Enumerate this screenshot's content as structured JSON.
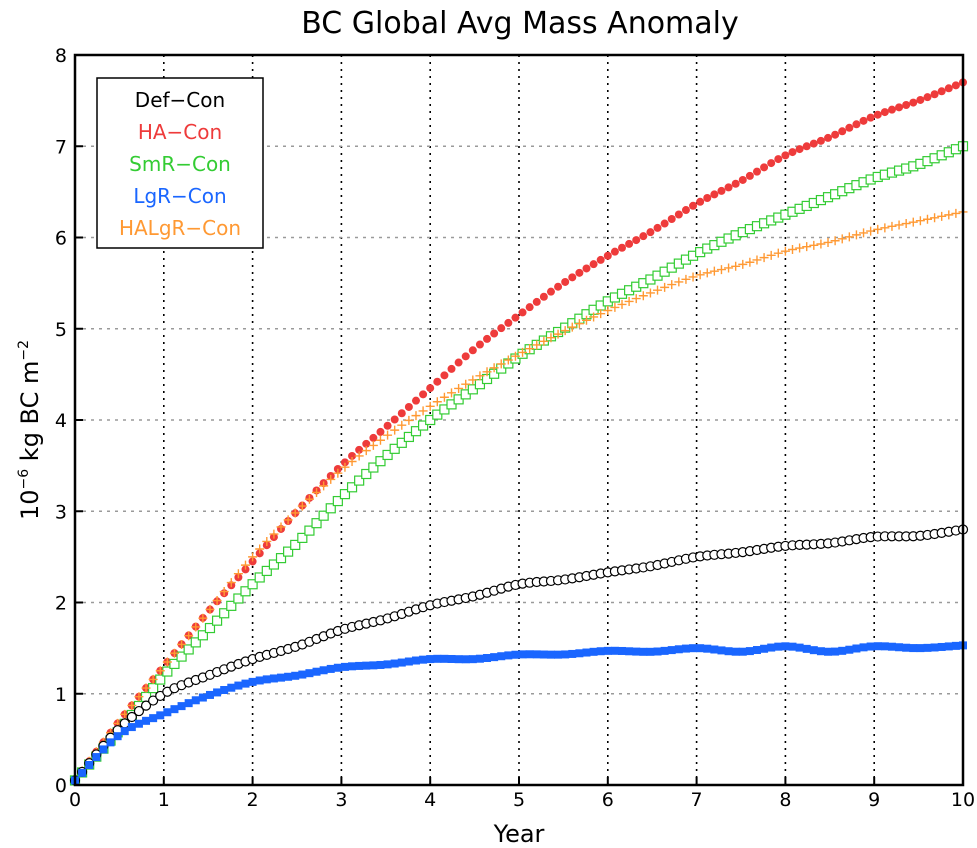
{
  "chart_data": {
    "type": "line",
    "title": "BC Global Avg Mass Anomaly",
    "xlabel": "Year",
    "ylabel_base": "10",
    "ylabel_exp": "−6",
    "ylabel_mid": " kg BC m",
    "ylabel_exp2": "−2",
    "xlim": [
      0,
      10
    ],
    "ylim": [
      0,
      8
    ],
    "x_ticks": [
      "0",
      "1",
      "2",
      "3",
      "4",
      "5",
      "6",
      "7",
      "8",
      "9",
      "10"
    ],
    "y_ticks": [
      "0",
      "1",
      "2",
      "3",
      "4",
      "5",
      "6",
      "7",
      "8"
    ],
    "grid": {
      "vertical": "dotted-black",
      "horizontal": "dotted-gray"
    },
    "legend_position": "top-left",
    "x": [
      0,
      0.5,
      1,
      1.5,
      2,
      2.5,
      3,
      3.5,
      4,
      4.5,
      5,
      5.5,
      6,
      6.5,
      7,
      7.5,
      8,
      8.5,
      9,
      9.5,
      10
    ],
    "series": [
      {
        "name": "Def−Con",
        "color": "#000000",
        "marker": "open-circle",
        "values": [
          0.05,
          0.62,
          1.0,
          1.2,
          1.38,
          1.52,
          1.7,
          1.82,
          1.97,
          2.07,
          2.2,
          2.25,
          2.33,
          2.4,
          2.5,
          2.55,
          2.62,
          2.65,
          2.72,
          2.73,
          2.8
        ]
      },
      {
        "name": "HA−Con",
        "color": "#ee3b3b",
        "marker": "filled-circle",
        "values": [
          0.05,
          0.7,
          1.3,
          1.9,
          2.45,
          3.0,
          3.5,
          3.92,
          4.35,
          4.78,
          5.15,
          5.5,
          5.8,
          6.07,
          6.37,
          6.62,
          6.9,
          7.1,
          7.33,
          7.5,
          7.7
        ]
      },
      {
        "name": "SmR−Con",
        "color": "#33cc33",
        "marker": "open-square",
        "values": [
          0.05,
          0.6,
          1.2,
          1.7,
          2.2,
          2.65,
          3.15,
          3.6,
          4.0,
          4.35,
          4.7,
          5.0,
          5.3,
          5.55,
          5.82,
          6.05,
          6.25,
          6.45,
          6.65,
          6.8,
          7.0
        ]
      },
      {
        "name": "LgR−Con",
        "color": "#1a66ff",
        "marker": "filled-square",
        "values": [
          0.05,
          0.55,
          0.78,
          0.98,
          1.13,
          1.2,
          1.29,
          1.32,
          1.38,
          1.38,
          1.43,
          1.43,
          1.47,
          1.46,
          1.5,
          1.46,
          1.52,
          1.46,
          1.52,
          1.5,
          1.53
        ]
      },
      {
        "name": "HALgR−Con",
        "color": "#ff9933",
        "marker": "plus",
        "values": [
          0.05,
          0.7,
          1.3,
          1.9,
          2.5,
          3.0,
          3.45,
          3.82,
          4.15,
          4.45,
          4.72,
          4.97,
          5.2,
          5.4,
          5.58,
          5.7,
          5.85,
          5.95,
          6.08,
          6.18,
          6.28
        ]
      }
    ]
  }
}
